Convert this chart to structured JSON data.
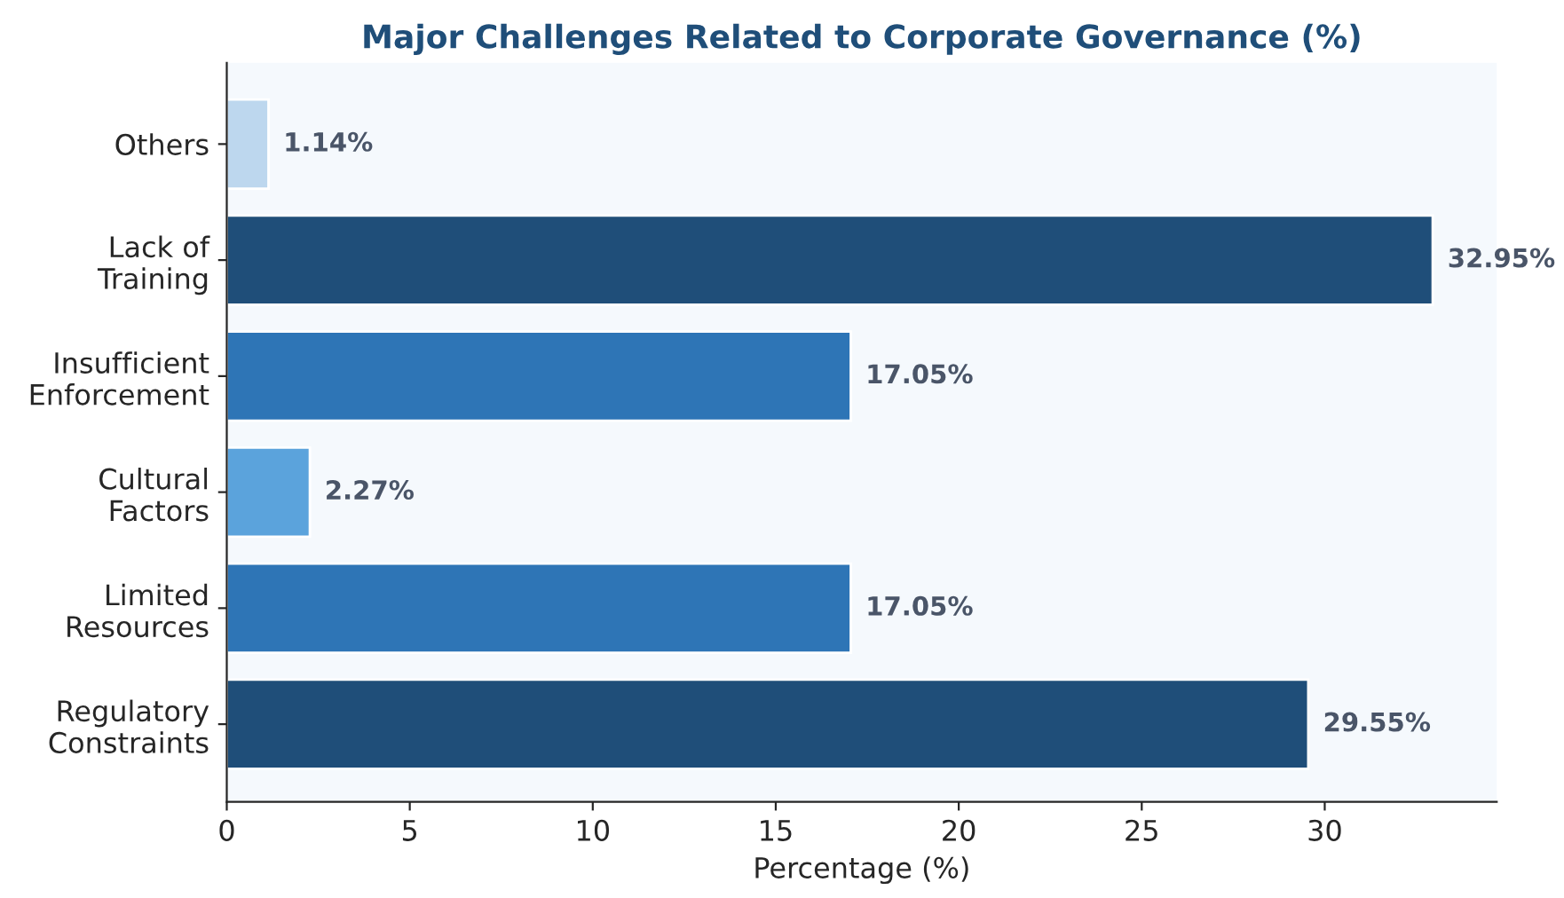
{
  "chart_data": {
    "type": "bar",
    "orientation": "horizontal",
    "title": "Major Challenges Related to Corporate Governance (%)",
    "xlabel": "Percentage (%)",
    "categories": [
      "Others",
      "Lack of\nTraining",
      "Insufficient\nEnforcement",
      "Cultural\nFactors",
      "Limited\nResources",
      "Regulatory\nConstraints"
    ],
    "values": [
      1.14,
      32.95,
      17.05,
      2.27,
      17.05,
      29.55
    ],
    "colors": [
      "#bdd7ee",
      "#1f4e79",
      "#2e75b6",
      "#5ba3dc",
      "#2e75b6",
      "#1f4e79"
    ],
    "value_labels": [
      "1.14%",
      "32.95%",
      "17.05%",
      "2.27%",
      "17.05%",
      "29.55%"
    ],
    "xlim": [
      0,
      34.7
    ],
    "xticks": [
      0,
      5,
      10,
      15,
      20,
      25,
      30
    ],
    "grid": false
  }
}
